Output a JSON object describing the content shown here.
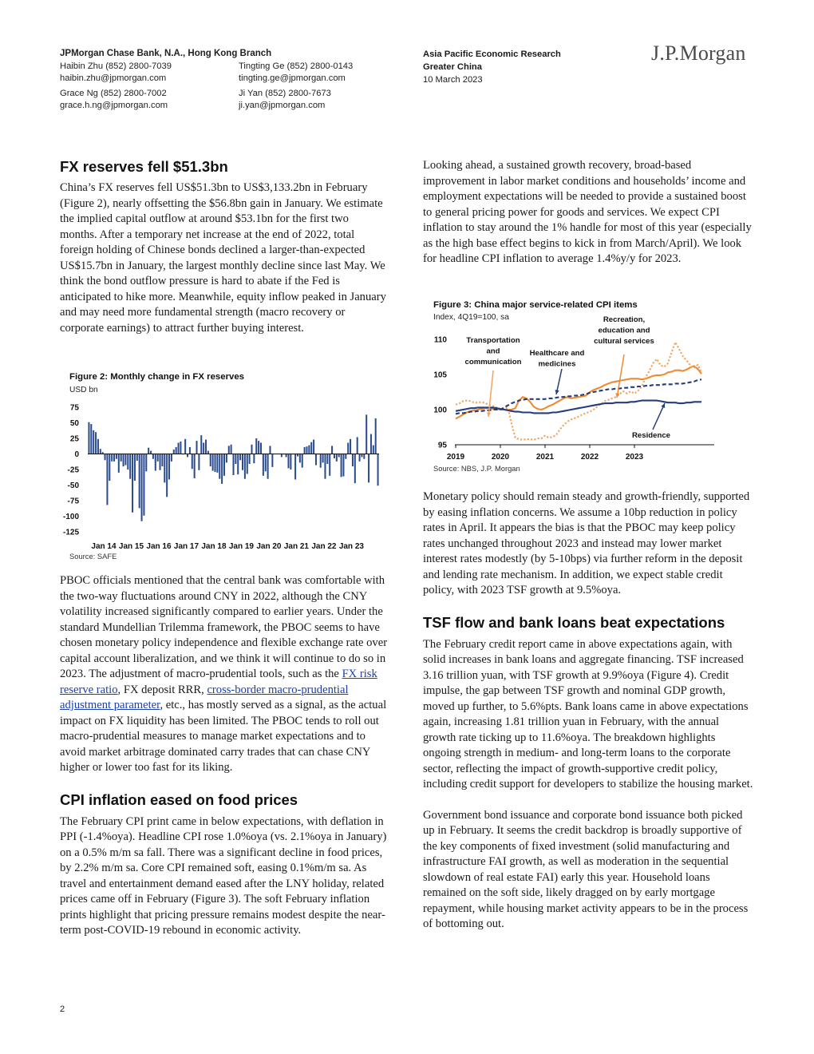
{
  "header": {
    "bank": "JPMorgan Chase Bank, N.A., Hong Kong Branch",
    "contacts": [
      {
        "name": "Haibin Zhu (852) 2800-7039",
        "email": "haibin.zhu@jpmorgan.com"
      },
      {
        "name": "Tingting Ge (852) 2800-0143",
        "email": "tingting.ge@jpmorgan.com"
      },
      {
        "name": "Grace Ng (852) 2800-7002",
        "email": "grace.h.ng@jpmorgan.com"
      },
      {
        "name": "Ji Yan (852) 2800-7673",
        "email": "ji.yan@jpmorgan.com"
      }
    ],
    "research": "Asia Pacific Economic Research",
    "region": "Greater China",
    "date": "10 March 2023",
    "logo": "J.P.Morgan"
  },
  "left": {
    "h1": "FX reserves fell $51.3bn",
    "p1": "China’s FX reserves fell US$51.3bn to US$3,133.2bn in February (Figure 2), nearly offsetting the $56.8bn gain in January. We estimate the implied capital outflow at around $53.1bn for the first two months. After a temporary net increase at the end of 2022, total foreign holding of Chinese bonds declined a larger-than-expected US$15.7bn in January, the largest monthly decline since last May. We think the bond outflow pressure is hard to abate if the Fed is anticipated to hike more. Meanwhile, equity inflow peaked in January and may need more fundamental strength (macro recovery or corporate earnings) to attract further buying interest.",
    "p2_a": "PBOC officials mentioned that the central bank was comfortable with the two-way fluctuations around CNY in 2022, although the CNY volatility increased significantly compared to earlier years. Under the standard Mundellian Trilemma framework, the PBOC seems to have chosen monetary policy independence and flexible exchange rate over capital account liberalization, and we think it will continue to do so in 2023.  The adjustment of macro-prudential tools, such as the ",
    "p2_link1": "FX risk reserve ratio",
    "p2_b": ", FX deposit RRR, ",
    "p2_link2": "cross-border macro-prudential adjustment parameter",
    "p2_c": ", etc., has mostly served as a signal, as the actual impact on FX liquidity has been limited. The PBOC tends to roll out macro-prudential measures to manage market expectations and to avoid market arbitrage dominated carry trades that can chase CNY higher or lower too fast for its liking.",
    "h2": "CPI inflation eased on food prices",
    "p3": "The February CPI print came in below expectations, with deflation in PPI (-1.4%oya). Headline CPI rose 1.0%oya (vs. 2.1%oya in January) on a 0.5% m/m sa fall. There was a significant decline in food prices, by 2.2% m/m sa. Core CPI remained soft, easing 0.1%m/m sa. As travel and entertainment demand eased after the LNY holiday, related prices came off in February (Figure 3). The soft February inflation prints highlight that pricing pressure remains modest despite the near-term post-COVID-19 rebound in economic activity."
  },
  "right": {
    "p1": "Looking ahead, a sustained growth recovery, broad-based improvement in labor market conditions and households’ income and employment expectations will be needed to provide a sustained boost to general pricing power for goods and services. We expect CPI inflation to stay around the 1% handle for most of this year (especially as the high base effect begins to kick in from March/April). We look for headline CPI inflation to average 1.4%y/y for 2023.",
    "p2": "Monetary policy should remain steady and growth-friendly, supported by easing inflation concerns. We assume a 10bp reduction in policy rates in April. It appears the bias is that the PBOC may keep policy rates unchanged throughout 2023 and instead may lower market interest rates modestly (by 5-10bps) via further reform in the deposit and lending rate mechanism. In addition, we expect stable credit policy, with 2023 TSF growth at 9.5%oya.",
    "h3": "TSF flow and bank loans beat expectations",
    "p3": "The February credit report came in above expectations again, with solid increases in bank loans and aggregate financing. TSF increased 3.16 trillion yuan, with TSF growth at 9.9%oya (Figure 4). Credit impulse, the gap between TSF growth and nominal GDP growth, moved up further, to 5.6%pts. Bank loans came in above expectations again, increasing 1.81 trillion yuan in February, with the annual growth rate ticking up to 11.6%oya. The breakdown highlights ongoing strength in medium- and long-term loans to the corporate sector, reflecting the impact of growth-supportive credit policy, including credit support for developers to stabilize the housing market.",
    "p4": "Government bond issuance and corporate bond issuance both picked up in February. It seems the credit backdrop is broadly supportive of the key components of fixed investment (solid manufacturing and infrastructure FAI growth, as well as moderation in the sequential slowdown of real estate FAI) early this year. Household loans remained on the soft side, likely dragged on by early mortgage repayment, while housing market activity appears to be in the process of bottoming out."
  },
  "page_number": "2",
  "chart_data": [
    {
      "type": "bar",
      "title": "Figure 2: Monthly change in FX reserves",
      "ylabel": "USD bn",
      "source": "Source: SAFE",
      "ylim": [
        -125,
        75
      ],
      "yticks": [
        75,
        50,
        25,
        0,
        -25,
        -50,
        -75,
        -100,
        -125
      ],
      "xtick_labels": [
        "Jan 14",
        "Jan 15",
        "Jan 16",
        "Jan 17",
        "Jan 18",
        "Jan 19",
        "Jan 20",
        "Jan 21",
        "Jan 22",
        "Jan 23"
      ],
      "x_start": "2014-01",
      "color": "#2a4b8d",
      "values": [
        51,
        48,
        38,
        35,
        24,
        8,
        3,
        -10,
        -82,
        -43,
        -12,
        -12,
        -8,
        -30,
        -12,
        -20,
        -18,
        -25,
        -40,
        -94,
        -43,
        -11,
        -87,
        -108,
        -99,
        -28,
        10,
        5,
        -8,
        -27,
        -12,
        -26,
        -20,
        -46,
        -69,
        -41,
        -12,
        7,
        11,
        18,
        20,
        -1,
        24,
        -5,
        11,
        -24,
        -39,
        21,
        -26,
        30,
        18,
        23,
        5,
        -20,
        -27,
        -29,
        -30,
        -40,
        -48,
        -35,
        -14,
        13,
        15,
        -34,
        -16,
        -33,
        -10,
        -26,
        -40,
        -32,
        -16,
        15,
        -15,
        25,
        21,
        18,
        -35,
        -28,
        -40,
        13,
        -21,
        0,
        0,
        0,
        -5,
        -1,
        -5,
        -23,
        -25,
        -1,
        -41,
        -4,
        -14,
        -22,
        11,
        12,
        14,
        19,
        23,
        -18,
        -1,
        -22,
        -14,
        -40,
        -16,
        -35,
        13,
        -7,
        -12,
        -5,
        -37,
        -36,
        -8,
        18,
        24,
        -20,
        -47,
        27,
        -12,
        -5,
        -8,
        63,
        -46,
        32,
        14,
        57,
        -51
      ]
    },
    {
      "type": "line",
      "title": "Figure 3: China major service-related CPI items",
      "ylabel": "Index, 4Q19=100, sa",
      "source": "Source: NBS, J.P. Morgan",
      "ylim": [
        95,
        110
      ],
      "yticks": [
        110,
        105,
        100,
        95
      ],
      "xtick_labels": [
        "2019",
        "2020",
        "2021",
        "2022",
        "2023"
      ],
      "x_start": "2019-01",
      "annotations": [
        "Recreation, education and cultural services",
        "Transportation and communication",
        "Healthcare and medicines",
        "Residence"
      ],
      "series": [
        {
          "name": "Recreation, education and cultural services",
          "color": "#f08a30",
          "dash": "solid",
          "values": [
            98.7,
            99.0,
            99.3,
            99.6,
            99.8,
            99.9,
            100.0,
            100.1,
            100.2,
            100.2,
            100.1,
            100.1,
            100.0,
            100.0,
            100.0,
            100.0,
            100.2,
            101.3,
            101.8,
            101.6,
            101.1,
            100.4,
            100.1,
            100.0,
            100.2,
            100.5,
            100.7,
            101.0,
            101.3,
            101.6,
            101.8,
            101.6,
            101.7,
            101.8,
            101.9,
            102.0,
            102.5,
            102.8,
            103.0,
            103.2,
            103.5,
            103.7,
            103.9,
            104.0,
            104.1,
            104.2,
            104.3,
            104.4,
            104.4,
            104.4,
            104.3,
            104.4,
            104.6,
            104.8,
            104.9,
            104.9,
            105.0,
            105.3,
            105.4,
            105.6,
            105.6,
            105.5,
            105.7,
            106.0,
            106.2,
            105.8,
            105.1
          ]
        },
        {
          "name": "Transportation and communication",
          "color": "#f3a45e",
          "dash": "dotted",
          "values": [
            100.7,
            100.9,
            101.2,
            101.3,
            101.2,
            101.0,
            101.0,
            101.1,
            100.9,
            100.7,
            100.5,
            100.3,
            100.1,
            100.1,
            100.3,
            98.0,
            96.0,
            95.8,
            95.7,
            95.8,
            95.8,
            95.7,
            95.9,
            95.9,
            96.3,
            96.0,
            96.1,
            96.4,
            97.2,
            97.8,
            98.3,
            98.6,
            98.8,
            99.0,
            99.3,
            99.5,
            99.7,
            100.0,
            100.4,
            100.8,
            101.2,
            101.4,
            101.6,
            101.8,
            102.2,
            102.6,
            102.3,
            102.6,
            102.3,
            102.7,
            103.3,
            104.6,
            105.5,
            106.6,
            107.2,
            106.3,
            106.1,
            106.6,
            108.2,
            109.6,
            108.6,
            107.6,
            107.0,
            106.3,
            105.9,
            106.4,
            105.3
          ]
        },
        {
          "name": "Healthcare and medicines",
          "color": "#253d7a",
          "dash": "dashed",
          "values": [
            99.4,
            99.5,
            99.5,
            99.6,
            99.7,
            99.7,
            99.8,
            99.8,
            99.9,
            99.9,
            100.0,
            100.0,
            100.0,
            100.3,
            100.6,
            100.9,
            101.1,
            101.3,
            101.4,
            101.5,
            101.5,
            101.5,
            101.5,
            101.5,
            101.5,
            101.6,
            101.6,
            101.7,
            101.8,
            101.8,
            101.9,
            101.9,
            102.0,
            102.0,
            102.1,
            102.2,
            102.4,
            102.5,
            102.6,
            102.7,
            102.8,
            102.9,
            102.9,
            103.0,
            103.0,
            103.1,
            103.1,
            103.2,
            103.2,
            103.3,
            103.3,
            103.4,
            103.4,
            103.5,
            103.5,
            103.5,
            103.6,
            103.6,
            103.6,
            103.7,
            103.7,
            103.7,
            103.8,
            103.9,
            104.0,
            104.2,
            104.3
          ]
        },
        {
          "name": "Residence",
          "color": "#253d7a",
          "dash": "solid",
          "values": [
            99.8,
            99.9,
            100.0,
            100.1,
            100.2,
            100.2,
            100.3,
            100.3,
            100.3,
            100.3,
            100.3,
            100.2,
            100.1,
            100.0,
            99.9,
            99.8,
            99.7,
            99.7,
            99.6,
            99.6,
            99.6,
            99.5,
            99.5,
            99.5,
            99.5,
            99.5,
            99.6,
            99.6,
            99.7,
            99.8,
            99.9,
            100.0,
            100.1,
            100.2,
            100.3,
            100.4,
            100.5,
            100.6,
            100.7,
            100.8,
            100.9,
            100.9,
            100.9,
            101.0,
            101.0,
            101.0,
            101.0,
            101.1,
            101.1,
            101.2,
            101.3,
            101.3,
            101.3,
            101.3,
            101.3,
            101.2,
            101.1,
            101.0,
            101.0,
            101.0,
            100.9,
            100.9,
            101.0,
            101.0,
            101.1,
            101.1,
            101.1
          ]
        }
      ]
    }
  ]
}
